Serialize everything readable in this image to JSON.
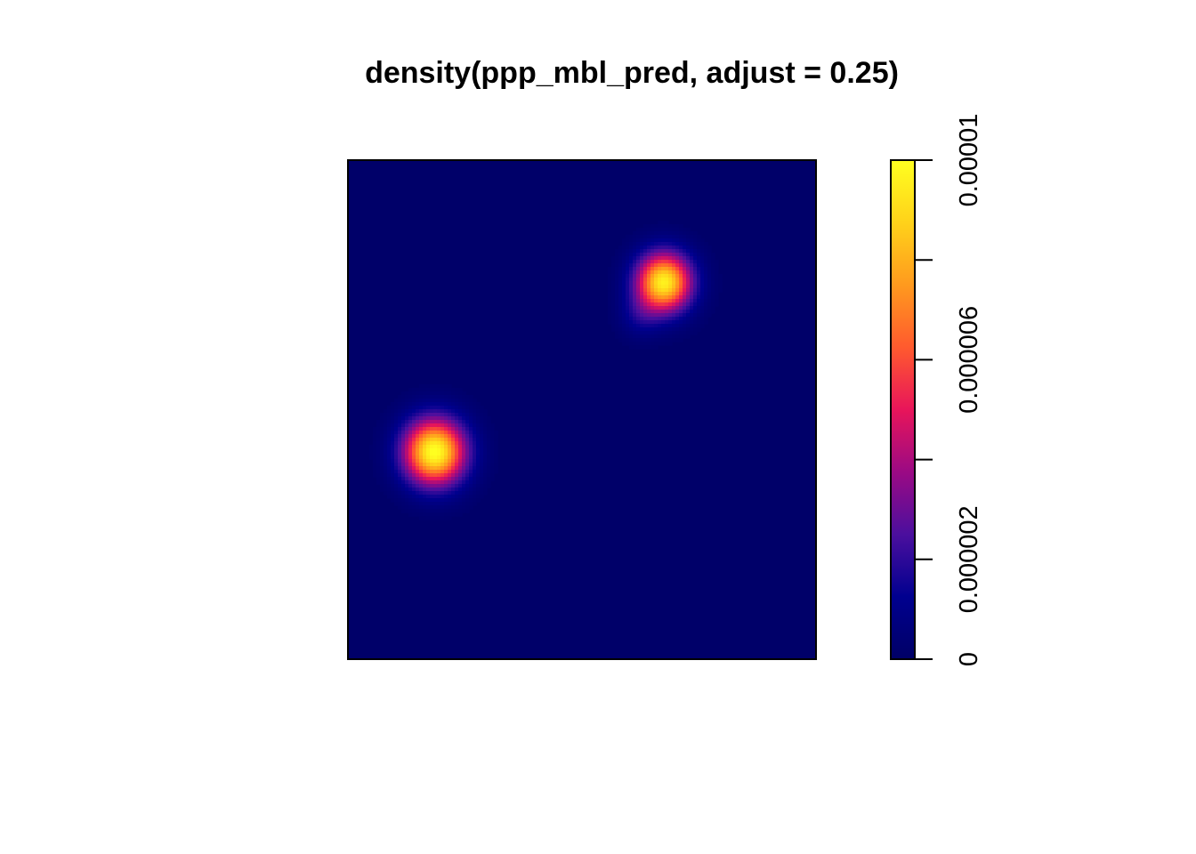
{
  "chart_data": {
    "type": "heatmap",
    "title": "density(ppp_mbl_pred, adjust = 0.25)",
    "xlabel": "",
    "ylabel": "",
    "axes_shown": false,
    "legend": {
      "position": "right",
      "orientation": "vertical",
      "range": [
        0,
        1e-05
      ],
      "ticks": [
        0,
        2e-06,
        4e-06,
        6e-06,
        8e-06,
        1e-05
      ],
      "tick_labels": [
        "0",
        "0.000002",
        "0.000006",
        "0.00001"
      ],
      "colormap": [
        "#000066",
        "#00008f",
        "#4b0f9e",
        "#9b0a84",
        "#e8155a",
        "#ff5a2e",
        "#ff9a1e",
        "#ffd21a",
        "#ffff20"
      ]
    },
    "window_extent": {
      "x": [
        0,
        1
      ],
      "y": [
        0,
        1
      ]
    },
    "hotspots": [
      {
        "x": 0.185,
        "y": 0.415,
        "peak": 1e-05,
        "spread": 0.045
      },
      {
        "x": 0.675,
        "y": 0.755,
        "peak": 9.5e-06,
        "spread": 0.04
      },
      {
        "x": 0.625,
        "y": 0.69,
        "peak": 1.2e-06,
        "spread": 0.03
      }
    ],
    "background_value": 1e-07
  }
}
